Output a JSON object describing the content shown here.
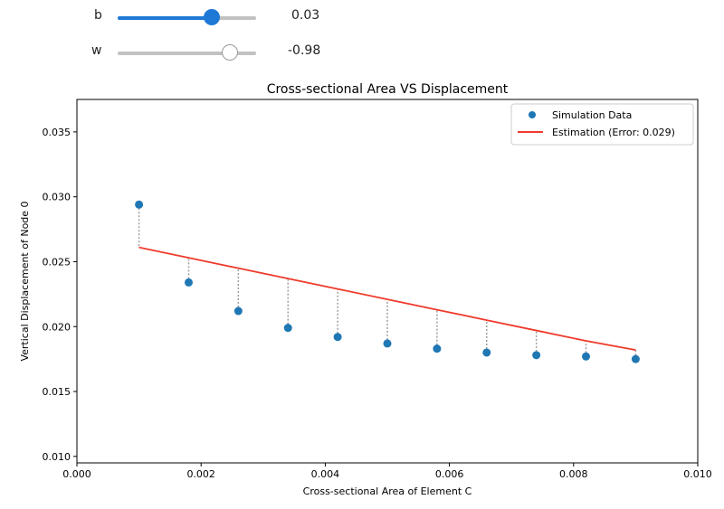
{
  "controls": {
    "b": {
      "label": "b",
      "value": "0.03",
      "position": 0.68
    },
    "w": {
      "label": "w",
      "value": "-0.98",
      "position": 0.81
    }
  },
  "colors": {
    "points": "#1f77b4",
    "line": "#ef3b2c",
    "residual": "#9e9e9e",
    "slider_active": "#1e78d6"
  },
  "chart_data": {
    "type": "scatter",
    "title": "Cross-sectional Area VS Displacement",
    "xlabel": "Cross-sectional Area of Element C",
    "ylabel": "Vertical Displacement of Node 0",
    "xlim": [
      0.0,
      0.01
    ],
    "ylim": [
      0.0095,
      0.0375
    ],
    "xticks": [
      "0.000",
      "0.002",
      "0.004",
      "0.006",
      "0.008",
      "0.010"
    ],
    "yticks": [
      "0.010",
      "0.015",
      "0.020",
      "0.025",
      "0.030",
      "0.035"
    ],
    "grid": false,
    "legend_position": "top-right",
    "series": [
      {
        "name": "Simulation Data",
        "kind": "scatter",
        "x": [
          0.001,
          0.0018,
          0.0026,
          0.0034,
          0.0042,
          0.005,
          0.0058,
          0.0066,
          0.0074,
          0.0082,
          0.009
        ],
        "y": [
          0.0294,
          0.0234,
          0.0212,
          0.0199,
          0.0192,
          0.0187,
          0.0183,
          0.018,
          0.0178,
          0.0177,
          0.0175
        ]
      },
      {
        "name": "Estimation (Error: 0.029)",
        "kind": "line",
        "x": [
          0.001,
          0.0018,
          0.0026,
          0.0034,
          0.0042,
          0.005,
          0.0058,
          0.0066,
          0.0074,
          0.0082,
          0.009
        ],
        "y": [
          0.0261,
          0.0253,
          0.0245,
          0.0237,
          0.0229,
          0.0221,
          0.0213,
          0.0205,
          0.0197,
          0.0189,
          0.0182
        ]
      }
    ]
  }
}
